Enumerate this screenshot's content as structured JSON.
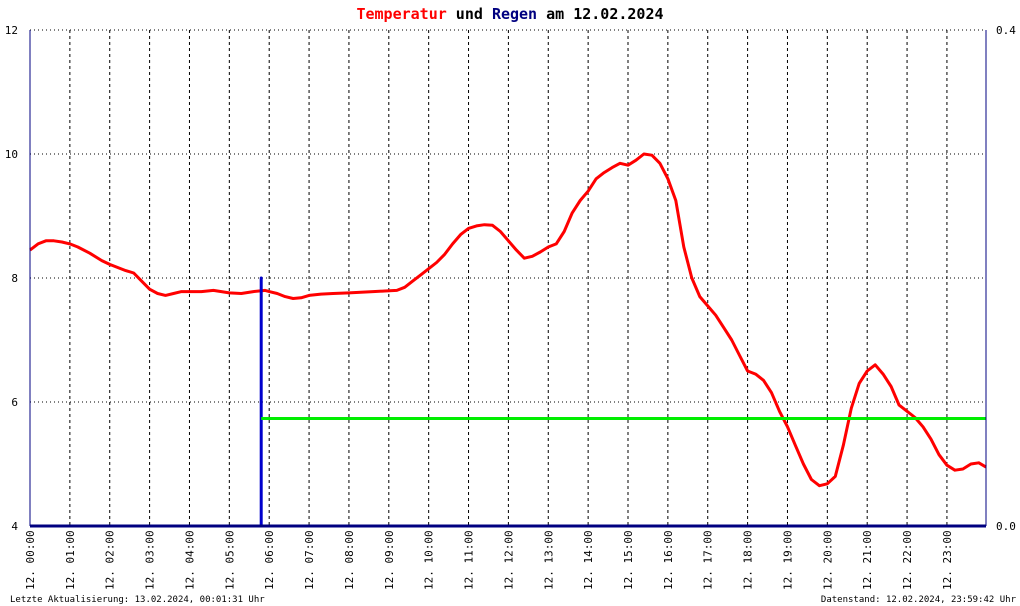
{
  "title": {
    "part1": "Temperatur",
    "part2": " und ",
    "part3": "Regen",
    "part4": " am 12.02.2024",
    "color1": "#ff0000",
    "color2": "#000000",
    "color3": "#000080",
    "color4": "#000000"
  },
  "footer": {
    "left": "Letzte Aktualisierung: 13.02.2024, 00:01:31 Uhr",
    "right": "Datenstand: 12.02.2024, 23:59:42 Uhr"
  },
  "colors": {
    "temperature": "#ff0000",
    "rain": "#0000cc",
    "rain_total": "#00ee00",
    "axis": "#000080",
    "grid": "#000000"
  },
  "chart_data": {
    "type": "line",
    "x_unit": "hours",
    "x_range": [
      0,
      23.98
    ],
    "xticks": [
      0,
      1,
      2,
      3,
      4,
      5,
      6,
      7,
      8,
      9,
      10,
      11,
      12,
      13,
      14,
      15,
      16,
      17,
      18,
      19,
      20,
      21,
      22,
      23
    ],
    "xtick_labels": [
      "12. 00:00",
      "12. 01:00",
      "12. 02:00",
      "12. 03:00",
      "12. 04:00",
      "12. 05:00",
      "12. 06:00",
      "12. 07:00",
      "12. 08:00",
      "12. 09:00",
      "12. 10:00",
      "12. 11:00",
      "12. 12:00",
      "12. 13:00",
      "12. 14:00",
      "12. 15:00",
      "12. 16:00",
      "12. 17:00",
      "12. 18:00",
      "12. 19:00",
      "12. 20:00",
      "12. 21:00",
      "12. 22:00",
      "12. 23:00"
    ],
    "y_left": {
      "range": [
        4,
        12
      ],
      "ticks": [
        4,
        6,
        8,
        10,
        12
      ],
      "tick_labels": [
        "4",
        "6",
        "8",
        "10",
        "12"
      ]
    },
    "y_right": {
      "range": [
        0,
        0.4
      ],
      "ticks": [
        0,
        0.4
      ],
      "tick_labels": [
        "0.0",
        "0.4"
      ]
    },
    "grid": true,
    "series": [
      {
        "axis": "left",
        "color": "#ff0000",
        "x": [
          0,
          0.2,
          0.4,
          0.6,
          0.8,
          1.0,
          1.2,
          1.5,
          1.8,
          2.0,
          2.2,
          2.4,
          2.6,
          2.8,
          3.0,
          3.2,
          3.4,
          3.6,
          3.8,
          4.0,
          4.3,
          4.6,
          5.0,
          5.3,
          5.6,
          5.9,
          6.0,
          6.2,
          6.4,
          6.6,
          6.8,
          7.0,
          7.3,
          7.6,
          8.0,
          8.3,
          8.6,
          8.9,
          9.2,
          9.4,
          9.6,
          9.8,
          10.0,
          10.2,
          10.4,
          10.6,
          10.8,
          11.0,
          11.2,
          11.4,
          11.6,
          11.8,
          12.0,
          12.2,
          12.4,
          12.6,
          12.8,
          13.0,
          13.2,
          13.4,
          13.6,
          13.8,
          14.0,
          14.2,
          14.4,
          14.6,
          14.8,
          15.0,
          15.2,
          15.4,
          15.6,
          15.8,
          16.0,
          16.2,
          16.4,
          16.6,
          16.8,
          17.0,
          17.2,
          17.4,
          17.6,
          17.8,
          18.0,
          18.2,
          18.4,
          18.6,
          18.8,
          19.0,
          19.2,
          19.4,
          19.6,
          19.8,
          20.0,
          20.2,
          20.4,
          20.6,
          20.8,
          21.0,
          21.2,
          21.4,
          21.6,
          21.8,
          22.0,
          22.2,
          22.4,
          22.6,
          22.8,
          23.0,
          23.2,
          23.4,
          23.6,
          23.8,
          23.98
        ],
        "y": [
          8.45,
          8.55,
          8.6,
          8.6,
          8.58,
          8.55,
          8.5,
          8.4,
          8.28,
          8.22,
          8.17,
          8.12,
          8.08,
          7.95,
          7.82,
          7.75,
          7.72,
          7.75,
          7.78,
          7.78,
          7.78,
          7.8,
          7.76,
          7.75,
          7.78,
          7.8,
          7.78,
          7.75,
          7.7,
          7.67,
          7.68,
          7.72,
          7.74,
          7.75,
          7.76,
          7.77,
          7.78,
          7.79,
          7.8,
          7.85,
          7.95,
          8.05,
          8.15,
          8.25,
          8.38,
          8.55,
          8.7,
          8.8,
          8.84,
          8.86,
          8.85,
          8.75,
          8.6,
          8.45,
          8.32,
          8.35,
          8.42,
          8.5,
          8.55,
          8.75,
          9.05,
          9.25,
          9.4,
          9.6,
          9.7,
          9.78,
          9.85,
          9.82,
          9.9,
          10.0,
          9.98,
          9.85,
          9.6,
          9.25,
          8.5,
          8.0,
          7.7,
          7.55,
          7.4,
          7.2,
          7.0,
          6.75,
          6.5,
          6.45,
          6.35,
          6.15,
          5.85,
          5.6,
          5.3,
          5.0,
          4.75,
          4.65,
          4.68,
          4.8,
          5.3,
          5.9,
          6.3,
          6.5,
          6.6,
          6.45,
          6.25,
          5.95,
          5.85,
          5.75,
          5.6,
          5.4,
          5.15,
          4.98,
          4.9,
          4.92,
          5.0,
          5.02,
          4.95
        ]
      },
      {
        "axis": "right",
        "color": "#0000cc",
        "x": [
          0,
          5.8,
          5.8,
          5.8,
          23.98
        ],
        "y": [
          0,
          0,
          0.2,
          0,
          0
        ]
      },
      {
        "axis": "right",
        "color": "#00ee00",
        "x": [
          5.8,
          23.98
        ],
        "y": [
          0.0867,
          0.0867
        ]
      }
    ]
  }
}
